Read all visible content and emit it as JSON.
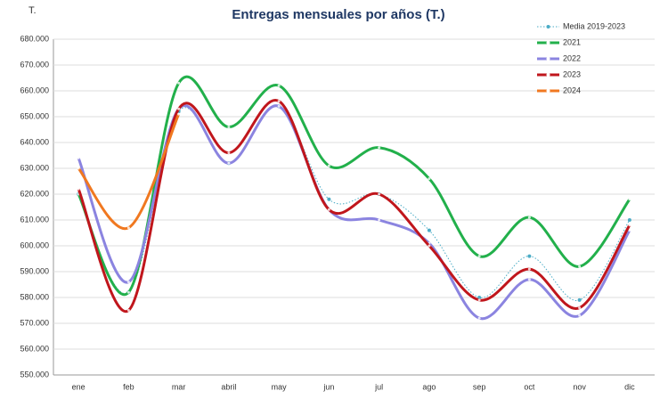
{
  "chart_data": {
    "type": "line",
    "title": "Entregas mensuales por años (T.)",
    "y_unit": "T.",
    "categories": [
      "ene",
      "feb",
      "mar",
      "abril",
      "may",
      "jun",
      "jul",
      "ago",
      "sep",
      "oct",
      "nov",
      "dic"
    ],
    "ylim": [
      550000,
      680000
    ],
    "yticks": [
      {
        "value": 550000,
        "label": "550.000"
      },
      {
        "value": 560000,
        "label": "560.000"
      },
      {
        "value": 570000,
        "label": "570.000"
      },
      {
        "value": 580000,
        "label": "580.000"
      },
      {
        "value": 590000,
        "label": "590.000"
      },
      {
        "value": 600000,
        "label": "600.000"
      },
      {
        "value": 610000,
        "label": "610.000"
      },
      {
        "value": 620000,
        "label": "620.000"
      },
      {
        "value": 630000,
        "label": "630.000"
      },
      {
        "value": 640000,
        "label": "640.000"
      },
      {
        "value": 650000,
        "label": "650.000"
      },
      {
        "value": 660000,
        "label": "660.000"
      },
      {
        "value": 670000,
        "label": "670.000"
      },
      {
        "value": 680000,
        "label": "680.000"
      }
    ],
    "grid": true,
    "legend": "top-right",
    "series": [
      {
        "name": "Media 2019-2023",
        "color": "#4bacc6",
        "style": "dotted",
        "values": [
          620000,
          582000,
          652000,
          632000,
          654000,
          618000,
          620000,
          606000,
          580000,
          596000,
          579000,
          610000
        ]
      },
      {
        "name": "2021",
        "color": "#22b04b",
        "values": [
          620000,
          582000,
          663000,
          646000,
          662000,
          631000,
          638000,
          626000,
          596000,
          611000,
          592000,
          618000
        ]
      },
      {
        "name": "2022",
        "color": "#8b84e0",
        "values": [
          634000,
          586000,
          653000,
          632000,
          654000,
          614000,
          610000,
          601000,
          572000,
          587000,
          573000,
          606000
        ]
      },
      {
        "name": "2023",
        "color": "#c0161c",
        "values": [
          622000,
          575000,
          653000,
          636000,
          656000,
          614000,
          620000,
          600000,
          579000,
          591000,
          576000,
          608000
        ]
      },
      {
        "name": "2024",
        "color": "#f07820",
        "values": [
          630000,
          607000,
          651000,
          null,
          null,
          null,
          null,
          null,
          null,
          null,
          null,
          null
        ]
      }
    ]
  }
}
